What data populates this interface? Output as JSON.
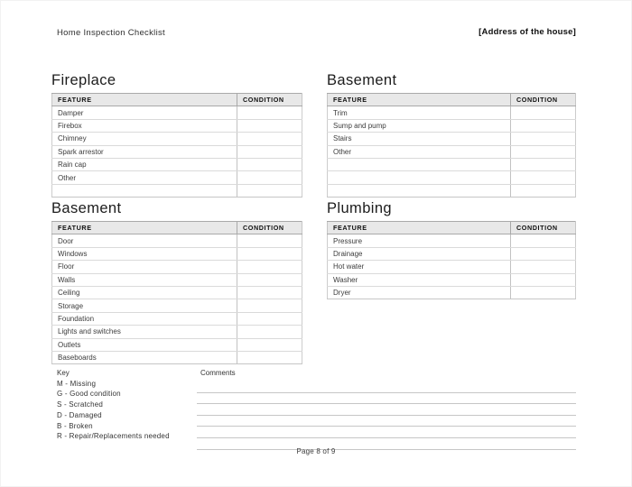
{
  "header": {
    "title": "Home Inspection Checklist",
    "address": "[Address of the house]"
  },
  "columns": {
    "feature": "FEATURE",
    "condition": "CONDITION"
  },
  "sections": [
    {
      "id": "fireplace",
      "title": "Fireplace",
      "rows": [
        "Damper",
        "Firebox",
        "Chimney",
        "Spark arrestor",
        "Rain cap",
        "Other"
      ],
      "blank_rows": 1
    },
    {
      "id": "basement-right",
      "title": "Basement",
      "rows": [
        "Trim",
        "Sump and pump",
        "Stairs",
        "Other"
      ],
      "blank_rows": 3
    },
    {
      "id": "basement-left",
      "title": "Basement",
      "rows": [
        "Door",
        "Windows",
        "Floor",
        "Walls",
        "Ceiling",
        "Storage",
        "Foundation",
        "Lights and switches",
        "Outlets",
        "Baseboards"
      ],
      "blank_rows": 0
    },
    {
      "id": "plumbing",
      "title": "Plumbing",
      "rows": [
        "Pressure",
        "Drainage",
        "Hot water",
        "Washer",
        "Dryer"
      ],
      "blank_rows": 0
    }
  ],
  "key": {
    "title": "Key",
    "items": [
      "M - Missing",
      "G - Good condition",
      "S - Scratched",
      "D - Damaged",
      "B - Broken",
      "R - Repair/Replacements needed"
    ]
  },
  "comments": {
    "title": "Comments",
    "line_count": 6
  },
  "footer": {
    "page": "Page 8 of 9"
  }
}
